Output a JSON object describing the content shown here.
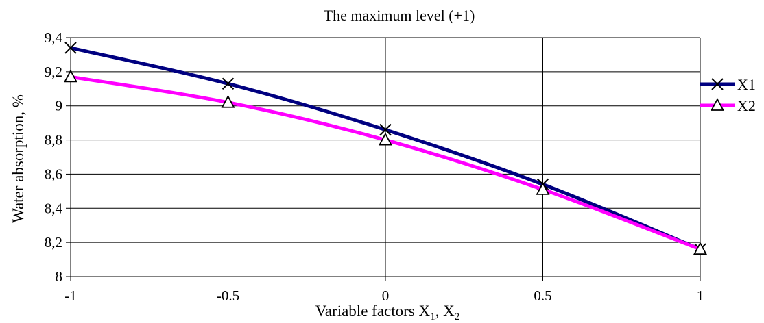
{
  "chart_data": {
    "type": "line",
    "title": "The maximum level (+1)",
    "xlabel": {
      "prefix": "Variable factors  X",
      "sub1": "1",
      "mid": ", X",
      "sub2": "2"
    },
    "ylabel": "Water absorption, %",
    "x": [
      -1,
      -0.5,
      0,
      0.5,
      1
    ],
    "x_tick_labels": [
      "-1",
      "-0.5",
      "0",
      "0.5",
      "1"
    ],
    "xlim": [
      -1,
      1
    ],
    "ylim": [
      8,
      9.4
    ],
    "y_ticks": [
      8,
      8.2,
      8.4,
      8.6,
      8.8,
      9,
      9.2,
      9.4
    ],
    "y_tick_labels": [
      "8",
      "8,2",
      "8,4",
      "8,6",
      "8,8",
      "9",
      "9,2",
      "9,4"
    ],
    "grid": true,
    "legend_position": "right",
    "series": [
      {
        "name": "X1",
        "values": [
          9.34,
          9.13,
          8.86,
          8.54,
          8.16
        ],
        "color": "#000080",
        "marker": "x"
      },
      {
        "name": "X2",
        "values": [
          9.17,
          9.02,
          8.8,
          8.51,
          8.16
        ],
        "color": "#ff00ff",
        "marker": "triangle"
      }
    ]
  }
}
